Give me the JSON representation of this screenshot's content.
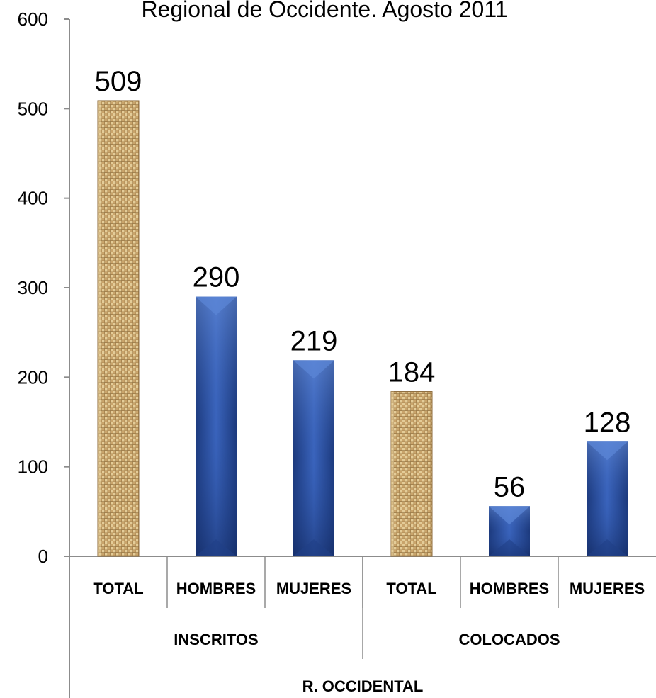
{
  "chart_data": {
    "type": "bar",
    "title": "Regional de Occidente. Agosto 2011",
    "ylim": [
      0,
      600
    ],
    "yticks": [
      0,
      100,
      200,
      300,
      400,
      500,
      600
    ],
    "categories": [
      "TOTAL",
      "HOMBRES",
      "MUJERES",
      "TOTAL",
      "HOMBRES",
      "MUJERES"
    ],
    "values": [
      509,
      290,
      219,
      184,
      56,
      128
    ],
    "bar_styles": [
      "burlap",
      "blue",
      "blue",
      "burlap",
      "blue",
      "blue"
    ],
    "groups": [
      {
        "label": "INSCRITOS",
        "span": 3
      },
      {
        "label": "COLOCADOS",
        "span": 3
      }
    ],
    "top_group": "R. OCCIDENTAL",
    "colors": {
      "blue_dark": "#1F3F87",
      "blue_light": "#5B86D6",
      "burlap_base": "#C9A46B",
      "burlap_dark": "#8C6A3A",
      "burlap_light": "#E8D2A0",
      "axis": "#8C8C8C"
    }
  }
}
